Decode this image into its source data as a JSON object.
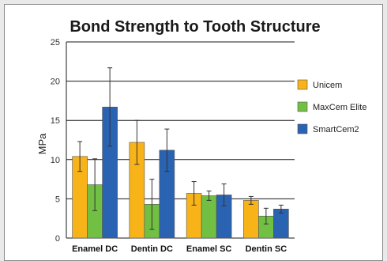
{
  "colors": {
    "unicem": "#f8b318",
    "maxcem": "#72c043",
    "smartcem": "#2a63b2",
    "grid": "#1a1a1a",
    "error": "#333333"
  },
  "chart_data": {
    "type": "bar",
    "title": "Bond Strength to Tooth Structure",
    "xlabel": "",
    "ylabel": "MPa",
    "ylim": [
      0,
      25
    ],
    "yticks": [
      "0",
      "5",
      "10",
      "15",
      "20",
      "25"
    ],
    "grid": true,
    "legend_position": "right",
    "categories": [
      "Enamel DC",
      "Dentin DC",
      "Enamel SC",
      "Dentin SC"
    ],
    "series": [
      {
        "name": "Unicem",
        "color_key": "unicem",
        "values": [
          10.4,
          12.2,
          5.7,
          4.8
        ],
        "errors": [
          1.9,
          2.8,
          1.5,
          0.5
        ]
      },
      {
        "name": "MaxCem Elite",
        "color_key": "maxcem",
        "values": [
          6.8,
          4.3,
          5.4,
          2.8
        ],
        "errors": [
          3.3,
          3.2,
          0.6,
          1.0
        ]
      },
      {
        "name": "SmartCem2",
        "color_key": "smartcem",
        "values": [
          16.7,
          11.2,
          5.5,
          3.7
        ],
        "errors": [
          5.0,
          2.7,
          1.4,
          0.5
        ]
      }
    ]
  }
}
